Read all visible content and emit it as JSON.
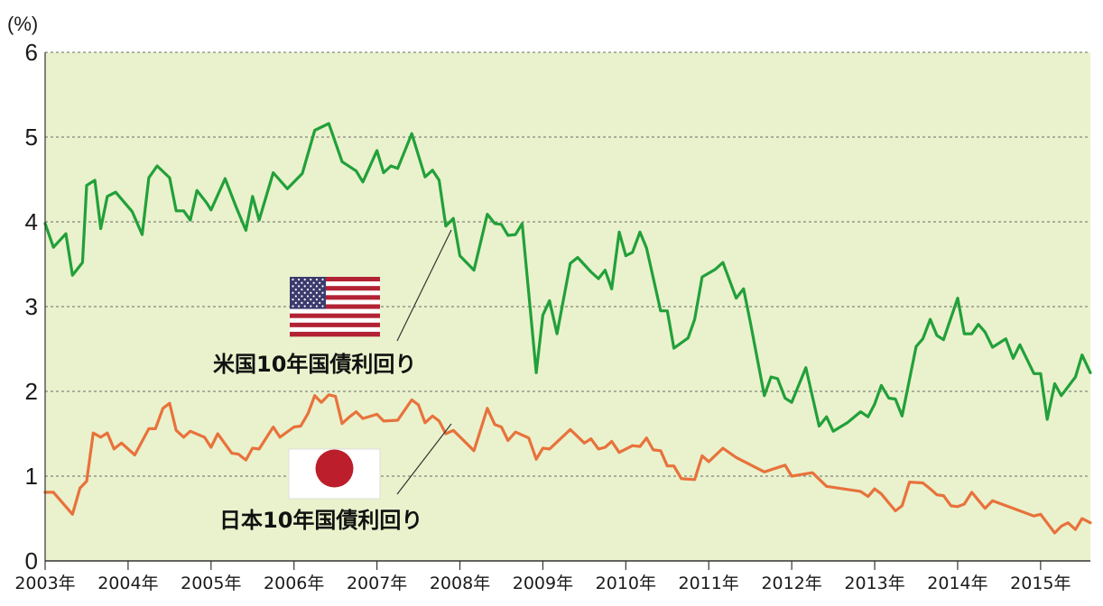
{
  "chart_data": {
    "type": "line",
    "yunit": "(%)",
    "ylim": [
      0,
      6
    ],
    "yticks": [
      "0",
      "1",
      "2",
      "3",
      "4",
      "5",
      "6"
    ],
    "xlim": [
      2003.0,
      2015.6
    ],
    "xticks": [
      {
        "value": 2003,
        "label": "2003年"
      },
      {
        "value": 2004,
        "label": "2004年"
      },
      {
        "value": 2005,
        "label": "2005年"
      },
      {
        "value": 2006,
        "label": "2006年"
      },
      {
        "value": 2007,
        "label": "2007年"
      },
      {
        "value": 2008,
        "label": "2008年"
      },
      {
        "value": 2009,
        "label": "2009年"
      },
      {
        "value": 2010,
        "label": "2010年"
      },
      {
        "value": 2011,
        "label": "2011年"
      },
      {
        "value": 2012,
        "label": "2012年"
      },
      {
        "value": 2013,
        "label": "2013年"
      },
      {
        "value": 2014,
        "label": "2014年"
      },
      {
        "value": 2015,
        "label": "2015年"
      }
    ],
    "grid": "horizontal-dashed",
    "background_color": "#e9f2cc",
    "series": [
      {
        "name": "米国10年国債利回り",
        "color": "#22a03a",
        "flag": "us-flag",
        "points": [
          [
            2003.0,
            3.98
          ],
          [
            2003.1,
            3.7
          ],
          [
            2003.25,
            3.86
          ],
          [
            2003.33,
            3.37
          ],
          [
            2003.45,
            3.52
          ],
          [
            2003.5,
            4.43
          ],
          [
            2003.6,
            4.49
          ],
          [
            2003.67,
            3.92
          ],
          [
            2003.75,
            4.3
          ],
          [
            2003.85,
            4.35
          ],
          [
            2004.05,
            4.12
          ],
          [
            2004.17,
            3.85
          ],
          [
            2004.25,
            4.52
          ],
          [
            2004.35,
            4.66
          ],
          [
            2004.5,
            4.52
          ],
          [
            2004.58,
            4.13
          ],
          [
            2004.67,
            4.13
          ],
          [
            2004.75,
            4.02
          ],
          [
            2004.83,
            4.37
          ],
          [
            2004.95,
            4.22
          ],
          [
            2005.0,
            4.14
          ],
          [
            2005.17,
            4.51
          ],
          [
            2005.3,
            4.18
          ],
          [
            2005.42,
            3.9
          ],
          [
            2005.5,
            4.3
          ],
          [
            2005.58,
            4.02
          ],
          [
            2005.75,
            4.58
          ],
          [
            2005.92,
            4.39
          ],
          [
            2006.1,
            4.57
          ],
          [
            2006.25,
            5.08
          ],
          [
            2006.42,
            5.16
          ],
          [
            2006.58,
            4.71
          ],
          [
            2006.75,
            4.6
          ],
          [
            2006.83,
            4.47
          ],
          [
            2007.0,
            4.84
          ],
          [
            2007.08,
            4.58
          ],
          [
            2007.17,
            4.66
          ],
          [
            2007.25,
            4.63
          ],
          [
            2007.42,
            5.04
          ],
          [
            2007.58,
            4.53
          ],
          [
            2007.67,
            4.61
          ],
          [
            2007.75,
            4.49
          ],
          [
            2007.83,
            3.95
          ],
          [
            2007.92,
            4.04
          ],
          [
            2008.0,
            3.6
          ],
          [
            2008.17,
            3.43
          ],
          [
            2008.33,
            4.09
          ],
          [
            2008.42,
            3.98
          ],
          [
            2008.5,
            3.97
          ],
          [
            2008.58,
            3.84
          ],
          [
            2008.67,
            3.85
          ],
          [
            2008.75,
            3.98
          ],
          [
            2008.92,
            2.22
          ],
          [
            2009.0,
            2.9
          ],
          [
            2009.08,
            3.07
          ],
          [
            2009.17,
            2.68
          ],
          [
            2009.33,
            3.51
          ],
          [
            2009.42,
            3.58
          ],
          [
            2009.58,
            3.41
          ],
          [
            2009.67,
            3.33
          ],
          [
            2009.75,
            3.43
          ],
          [
            2009.83,
            3.21
          ],
          [
            2009.92,
            3.88
          ],
          [
            2010.0,
            3.6
          ],
          [
            2010.08,
            3.64
          ],
          [
            2010.17,
            3.88
          ],
          [
            2010.25,
            3.69
          ],
          [
            2010.42,
            2.95
          ],
          [
            2010.5,
            2.95
          ],
          [
            2010.58,
            2.51
          ],
          [
            2010.75,
            2.63
          ],
          [
            2010.83,
            2.85
          ],
          [
            2010.92,
            3.35
          ],
          [
            2011.08,
            3.44
          ],
          [
            2011.17,
            3.52
          ],
          [
            2011.33,
            3.1
          ],
          [
            2011.42,
            3.21
          ],
          [
            2011.5,
            2.82
          ],
          [
            2011.67,
            1.95
          ],
          [
            2011.75,
            2.17
          ],
          [
            2011.83,
            2.15
          ],
          [
            2011.92,
            1.92
          ],
          [
            2012.0,
            1.87
          ],
          [
            2012.17,
            2.28
          ],
          [
            2012.33,
            1.59
          ],
          [
            2012.42,
            1.7
          ],
          [
            2012.5,
            1.53
          ],
          [
            2012.67,
            1.63
          ],
          [
            2012.83,
            1.76
          ],
          [
            2012.92,
            1.7
          ],
          [
            2013.0,
            1.85
          ],
          [
            2013.08,
            2.07
          ],
          [
            2013.17,
            1.92
          ],
          [
            2013.25,
            1.91
          ],
          [
            2013.33,
            1.71
          ],
          [
            2013.5,
            2.53
          ],
          [
            2013.58,
            2.62
          ],
          [
            2013.67,
            2.85
          ],
          [
            2013.75,
            2.66
          ],
          [
            2013.83,
            2.61
          ],
          [
            2014.0,
            3.1
          ],
          [
            2014.08,
            2.68
          ],
          [
            2014.17,
            2.68
          ],
          [
            2014.25,
            2.79
          ],
          [
            2014.33,
            2.7
          ],
          [
            2014.42,
            2.52
          ],
          [
            2014.58,
            2.62
          ],
          [
            2014.67,
            2.39
          ],
          [
            2014.75,
            2.55
          ],
          [
            2014.92,
            2.21
          ],
          [
            2015.0,
            2.21
          ],
          [
            2015.08,
            1.67
          ],
          [
            2015.17,
            2.09
          ],
          [
            2015.25,
            1.95
          ],
          [
            2015.42,
            2.17
          ],
          [
            2015.5,
            2.43
          ],
          [
            2015.6,
            2.22
          ]
        ]
      },
      {
        "name": "日本10年国債利回り",
        "color": "#e8723c",
        "flag": "japan-flag",
        "points": [
          [
            2003.0,
            0.81
          ],
          [
            2003.1,
            0.81
          ],
          [
            2003.33,
            0.55
          ],
          [
            2003.42,
            0.86
          ],
          [
            2003.5,
            0.94
          ],
          [
            2003.58,
            1.51
          ],
          [
            2003.67,
            1.46
          ],
          [
            2003.75,
            1.51
          ],
          [
            2003.83,
            1.32
          ],
          [
            2003.92,
            1.39
          ],
          [
            2004.08,
            1.25
          ],
          [
            2004.25,
            1.56
          ],
          [
            2004.33,
            1.56
          ],
          [
            2004.42,
            1.8
          ],
          [
            2004.5,
            1.86
          ],
          [
            2004.58,
            1.54
          ],
          [
            2004.67,
            1.46
          ],
          [
            2004.75,
            1.53
          ],
          [
            2004.92,
            1.46
          ],
          [
            2005.0,
            1.34
          ],
          [
            2005.08,
            1.5
          ],
          [
            2005.17,
            1.38
          ],
          [
            2005.25,
            1.27
          ],
          [
            2005.33,
            1.26
          ],
          [
            2005.42,
            1.19
          ],
          [
            2005.5,
            1.33
          ],
          [
            2005.58,
            1.32
          ],
          [
            2005.75,
            1.58
          ],
          [
            2005.83,
            1.46
          ],
          [
            2006.0,
            1.58
          ],
          [
            2006.08,
            1.59
          ],
          [
            2006.17,
            1.74
          ],
          [
            2006.25,
            1.95
          ],
          [
            2006.33,
            1.87
          ],
          [
            2006.42,
            1.96
          ],
          [
            2006.5,
            1.94
          ],
          [
            2006.58,
            1.62
          ],
          [
            2006.67,
            1.7
          ],
          [
            2006.75,
            1.76
          ],
          [
            2006.83,
            1.68
          ],
          [
            2007.0,
            1.73
          ],
          [
            2007.08,
            1.65
          ],
          [
            2007.25,
            1.66
          ],
          [
            2007.42,
            1.9
          ],
          [
            2007.5,
            1.84
          ],
          [
            2007.58,
            1.63
          ],
          [
            2007.67,
            1.71
          ],
          [
            2007.75,
            1.65
          ],
          [
            2007.83,
            1.5
          ],
          [
            2007.92,
            1.54
          ],
          [
            2008.17,
            1.3
          ],
          [
            2008.33,
            1.8
          ],
          [
            2008.42,
            1.61
          ],
          [
            2008.5,
            1.58
          ],
          [
            2008.58,
            1.42
          ],
          [
            2008.67,
            1.52
          ],
          [
            2008.83,
            1.45
          ],
          [
            2008.92,
            1.2
          ],
          [
            2009.0,
            1.33
          ],
          [
            2009.08,
            1.32
          ],
          [
            2009.33,
            1.55
          ],
          [
            2009.5,
            1.39
          ],
          [
            2009.58,
            1.44
          ],
          [
            2009.67,
            1.32
          ],
          [
            2009.75,
            1.34
          ],
          [
            2009.83,
            1.41
          ],
          [
            2009.92,
            1.28
          ],
          [
            2010.08,
            1.36
          ],
          [
            2010.17,
            1.35
          ],
          [
            2010.25,
            1.45
          ],
          [
            2010.33,
            1.31
          ],
          [
            2010.42,
            1.3
          ],
          [
            2010.5,
            1.12
          ],
          [
            2010.58,
            1.12
          ],
          [
            2010.67,
            0.97
          ],
          [
            2010.83,
            0.96
          ],
          [
            2010.92,
            1.24
          ],
          [
            2011.0,
            1.17
          ],
          [
            2011.17,
            1.33
          ],
          [
            2011.33,
            1.22
          ],
          [
            2011.67,
            1.05
          ],
          [
            2011.92,
            1.13
          ],
          [
            2012.0,
            1.0
          ],
          [
            2012.25,
            1.04
          ],
          [
            2012.42,
            0.88
          ],
          [
            2012.83,
            0.82
          ],
          [
            2012.92,
            0.76
          ],
          [
            2013.0,
            0.85
          ],
          [
            2013.08,
            0.79
          ],
          [
            2013.25,
            0.59
          ],
          [
            2013.33,
            0.65
          ],
          [
            2013.42,
            0.93
          ],
          [
            2013.58,
            0.92
          ],
          [
            2013.67,
            0.85
          ],
          [
            2013.75,
            0.78
          ],
          [
            2013.83,
            0.77
          ],
          [
            2013.92,
            0.65
          ],
          [
            2014.0,
            0.64
          ],
          [
            2014.08,
            0.67
          ],
          [
            2014.17,
            0.81
          ],
          [
            2014.33,
            0.62
          ],
          [
            2014.42,
            0.71
          ],
          [
            2014.92,
            0.53
          ],
          [
            2015.0,
            0.55
          ],
          [
            2015.17,
            0.33
          ],
          [
            2015.25,
            0.41
          ],
          [
            2015.33,
            0.45
          ],
          [
            2015.42,
            0.37
          ],
          [
            2015.5,
            0.5
          ],
          [
            2015.6,
            0.45
          ]
        ]
      }
    ]
  }
}
